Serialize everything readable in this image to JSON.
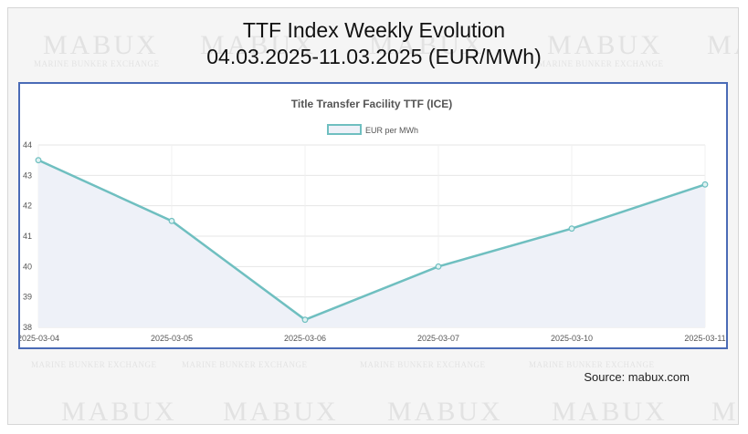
{
  "header": {
    "title_line1": "TTF Index Weekly Evolution",
    "title_line2": "04.03.2025-11.03.2025 (EUR/MWh)"
  },
  "watermark": {
    "logo": "MABUX",
    "tagline": "MARINE BUNKER EXCHANGE"
  },
  "source": "Source: mabux.com",
  "colors": {
    "line": "#6fbfc0",
    "area": "#eef1f8",
    "frame": "#4a6bb6"
  },
  "chart_data": {
    "type": "line",
    "title": "Title Transfer Facility TTF (ICE)",
    "categories": [
      "2025-03-04",
      "2025-03-05",
      "2025-03-06",
      "2025-03-07",
      "2025-03-10",
      "2025-03-11"
    ],
    "series": [
      {
        "name": "EUR per MWh",
        "values": [
          43.5,
          41.5,
          38.25,
          40.0,
          41.25,
          42.7
        ]
      }
    ],
    "ylim": [
      38,
      44
    ],
    "yticks": [
      38,
      39,
      40,
      41,
      42,
      43,
      44
    ],
    "legend": "top-center",
    "grid": true
  }
}
